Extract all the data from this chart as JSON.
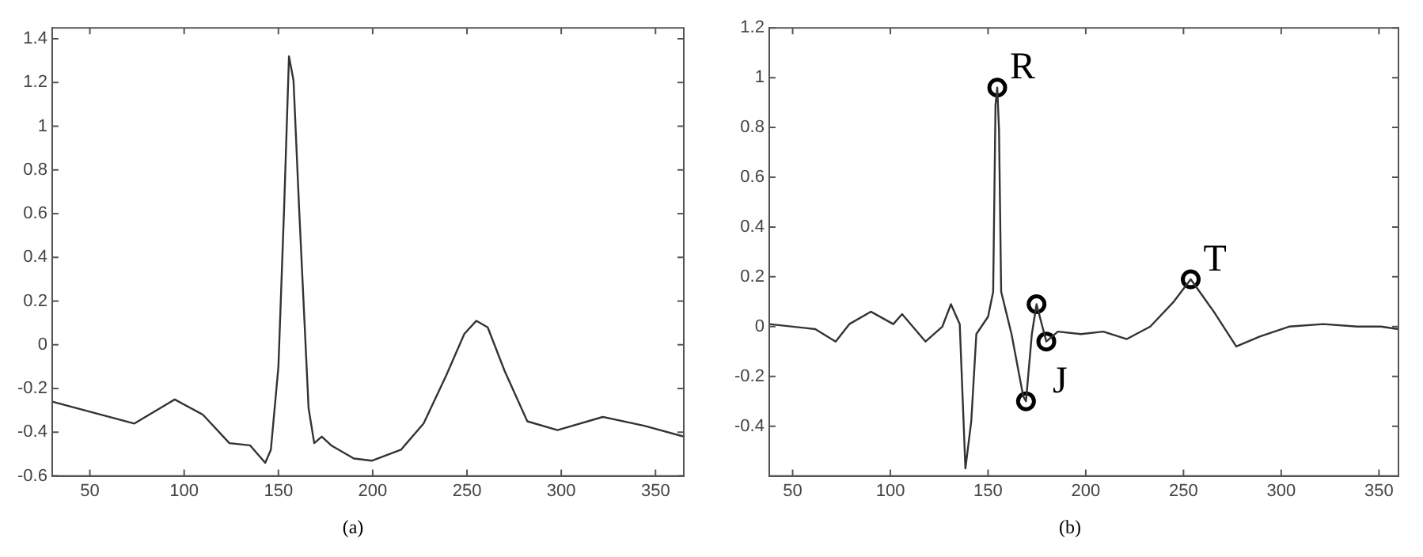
{
  "chart_data": [
    {
      "type": "line",
      "annotations": [
        "(a)"
      ],
      "xlim": [
        30,
        365
      ],
      "xticks": [
        50,
        100,
        150,
        200,
        250,
        300,
        350
      ],
      "ylim": [
        -0.6,
        1.45
      ],
      "yticks": [
        -0.6,
        -0.4,
        -0.2,
        0,
        0.2,
        0.4,
        0.6,
        0.8,
        1,
        1.2,
        1.4
      ],
      "grid": false,
      "legend": false,
      "marker": "none",
      "series": [
        {
          "color": "#333333",
          "x": [
            30,
            73.6,
            95,
            110,
            124,
            135,
            139,
            143,
            146,
            150,
            153,
            155.6,
            158,
            161,
            166,
            169,
            173,
            178,
            190,
            199.5,
            215,
            227,
            239,
            248.6,
            255,
            261,
            270,
            282,
            298,
            322,
            344,
            365
          ],
          "values": [
            -0.26,
            -0.36,
            -0.25,
            -0.32,
            -0.45,
            -0.46,
            -0.5,
            -0.54,
            -0.48,
            -0.1,
            0.62,
            1.32,
            1.21,
            0.62,
            -0.29,
            -0.45,
            -0.42,
            -0.46,
            -0.52,
            -0.53,
            -0.48,
            -0.36,
            -0.14,
            0.05,
            0.11,
            0.08,
            -0.12,
            -0.35,
            -0.39,
            -0.33,
            -0.37,
            -0.42
          ]
        }
      ]
    },
    {
      "type": "line",
      "annotations": [
        "(b)",
        {
          "text": "R",
          "x": 154.7,
          "y": 0.96
        },
        {
          "text": "J",
          "x": 179.8,
          "y": -0.06
        },
        {
          "text": "T",
          "x": 253.7,
          "y": 0.19
        }
      ],
      "xlim": [
        38,
        360
      ],
      "xticks": [
        50,
        100,
        150,
        200,
        250,
        300,
        350
      ],
      "ylim": [
        -0.6,
        1.2
      ],
      "yticks": [
        -0.4,
        -0.2,
        0,
        0.2,
        0.4,
        0.6,
        0.8,
        1,
        1.2
      ],
      "grid": false,
      "legend": false,
      "marker": "none",
      "series": [
        {
          "color": "#333333",
          "x": [
            38,
            61.6,
            72,
            79,
            90,
            101.5,
            106,
            118,
            126.6,
            131,
            135.5,
            138.4,
            141.4,
            144,
            150,
            152.6,
            153.8,
            154.7,
            155.6,
            156.7,
            162,
            168,
            169.4,
            172.4,
            174.8,
            179.8,
            185.7,
            197.5,
            209,
            221,
            233,
            245,
            253.7,
            265.5,
            277,
            289,
            304,
            321.6,
            339,
            351,
            360
          ],
          "values": [
            0.01,
            -0.01,
            -0.06,
            0.01,
            0.06,
            0.01,
            0.05,
            -0.06,
            0,
            0.09,
            0.01,
            -0.57,
            -0.38,
            -0.03,
            0.04,
            0.14,
            0.89,
            0.96,
            0.79,
            0.14,
            -0.03,
            -0.28,
            -0.3,
            -0.03,
            0.09,
            -0.06,
            -0.02,
            -0.03,
            -0.02,
            -0.05,
            0,
            0.1,
            0.19,
            0.06,
            -0.08,
            -0.04,
            0,
            0.01,
            0,
            0,
            -0.01
          ]
        },
        {
          "type": "scatter",
          "marker": "circle",
          "color": "#000000",
          "x": [
            154.7,
            169.4,
            174.8,
            179.8,
            253.7
          ],
          "values": [
            0.96,
            -0.3,
            0.09,
            -0.06,
            0.19
          ]
        }
      ]
    }
  ]
}
